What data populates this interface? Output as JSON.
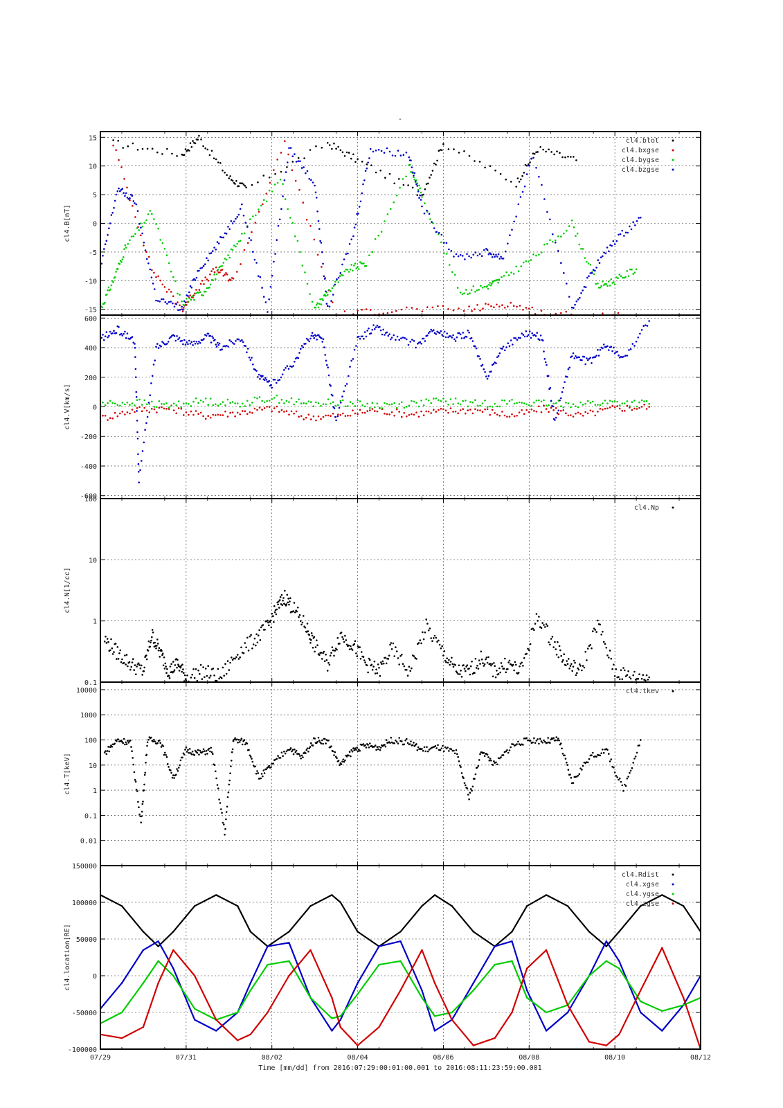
{
  "page_title": "-",
  "footer": {
    "time_label": "Time [mm/dd]  from 2016:07:29:00:01:00.001  to  2016:08:11:23:59:00.001"
  },
  "colors": {
    "black": "#000000",
    "red": "#d00000",
    "green": "#00cc00",
    "blue": "#0000c8"
  },
  "chart_data": [
    {
      "type": "scatter",
      "ylabel": "cl4.B[nT]",
      "ylim": [
        -16,
        16
      ],
      "yticks": [
        -15,
        -10,
        -5,
        0,
        5,
        10,
        15
      ],
      "ytick_labels": [
        "-15",
        "-10",
        "-5",
        "0",
        "5",
        "10",
        "15"
      ],
      "legend_position": "top-right",
      "series": [
        {
          "name": "cl4.btot",
          "color": "#000000",
          "x": [
            0.3,
            1.9,
            2.3,
            3.0,
            3.4,
            5.3,
            6.0,
            7.5,
            8.0,
            9.7,
            10.2,
            11.1
          ],
          "values": [
            14,
            12,
            15,
            8,
            6,
            14,
            11,
            5,
            14,
            7,
            13,
            11
          ]
        },
        {
          "name": "cl4.bxgse",
          "color": "#d00000",
          "x": [
            0.3,
            1.2,
            1.9,
            2.2,
            2.7,
            3.1,
            4.3,
            5.5,
            6.9,
            8.6,
            9.5,
            10.5,
            12.2
          ],
          "values": [
            14,
            -8,
            -15,
            -12,
            -8,
            -10,
            14,
            -16,
            -15,
            -15,
            -14,
            -16,
            -16
          ]
        },
        {
          "name": "cl4.bygse",
          "color": "#00cc00",
          "x": [
            0.0,
            0.3,
            0.6,
            1.2,
            1.9,
            2.4,
            2.8,
            3.3,
            4.2,
            5.0,
            5.3,
            5.8,
            6.2,
            7.2,
            7.5,
            8.4,
            9.0,
            9.3,
            10.1,
            11.0,
            11.6,
            12.0,
            12.5
          ],
          "values": [
            -15,
            -10,
            -4,
            2,
            -14,
            -12,
            -8,
            -2,
            8,
            -15,
            -12,
            -8,
            -7,
            10,
            5,
            -12,
            -11,
            -10,
            -6,
            0,
            -11,
            -10,
            -8
          ]
        },
        {
          "name": "cl4.bzgse",
          "color": "#0000c8",
          "x": [
            0.0,
            0.4,
            0.8,
            1.3,
            1.9,
            2.3,
            2.8,
            3.3,
            3.9,
            4.4,
            5.0,
            5.3,
            5.9,
            6.3,
            7.2,
            7.5,
            8.3,
            9.0,
            9.4,
            10.1,
            11.0,
            11.5,
            12.0,
            12.6
          ],
          "values": [
            -8,
            6,
            4,
            -13,
            -15,
            -8,
            -3,
            3,
            -15,
            13,
            7,
            -15,
            -2,
            13,
            12,
            3,
            -6,
            -5,
            -6,
            12,
            -15,
            -8,
            -3,
            1
          ]
        }
      ]
    },
    {
      "type": "scatter",
      "ylabel": "cl4.V[km/s]",
      "ylim": [
        -620,
        620
      ],
      "yticks": [
        -600,
        -400,
        -200,
        0,
        200,
        400,
        600
      ],
      "ytick_labels": [
        "-600",
        "-400",
        "-200",
        "0",
        "200",
        "400",
        "600"
      ],
      "series": [
        {
          "name": "",
          "color": "#d00000",
          "x": [
            0.0,
            0.8,
            1.6,
            2.4,
            3.2,
            4.0,
            4.8,
            5.6,
            6.4,
            7.2,
            8.0,
            8.8,
            9.6,
            10.4,
            11.2,
            12.0,
            12.8
          ],
          "values": [
            -80,
            -20,
            -10,
            -60,
            -40,
            -10,
            -70,
            -60,
            -20,
            -50,
            -30,
            -20,
            -60,
            -10,
            -60,
            -10,
            0
          ]
        },
        {
          "name": "",
          "color": "#00cc00",
          "x": [
            0.0,
            0.8,
            1.6,
            2.4,
            3.2,
            4.0,
            4.8,
            5.6,
            6.4,
            7.2,
            8.0,
            8.8,
            9.6,
            10.4,
            11.2,
            12.0,
            12.8
          ],
          "values": [
            20,
            30,
            10,
            40,
            20,
            60,
            20,
            30,
            10,
            20,
            40,
            20,
            30,
            20,
            20,
            30,
            20
          ]
        },
        {
          "name": "",
          "color": "#0000c8",
          "x": [
            0.0,
            0.4,
            0.8,
            0.9,
            1.3,
            1.7,
            2.1,
            2.5,
            2.8,
            3.3,
            3.7,
            4.0,
            4.5,
            4.9,
            5.2,
            5.5,
            6.0,
            6.4,
            6.8,
            7.4,
            7.8,
            8.2,
            8.6,
            9.0,
            9.4,
            9.9,
            10.3,
            10.6,
            11.0,
            11.4,
            11.8,
            12.2,
            12.8
          ],
          "values": [
            460,
            520,
            450,
            -500,
            400,
            480,
            420,
            480,
            400,
            470,
            200,
            150,
            300,
            480,
            450,
            -100,
            450,
            540,
            470,
            420,
            520,
            460,
            500,
            200,
            400,
            500,
            470,
            -100,
            350,
            300,
            420,
            320,
            580
          ]
        }
      ]
    },
    {
      "type": "scatter",
      "ylabel": "cl4.N[1/cc]",
      "ylim": [
        0.1,
        100
      ],
      "scale": "log",
      "yticks": [
        0.1,
        1,
        10,
        100
      ],
      "ytick_labels": [
        "0.1",
        "1",
        "10",
        "100"
      ],
      "legend_position": "top-right",
      "series": [
        {
          "name": "cl4.Np",
          "color": "#000000",
          "x": [
            0.1,
            0.4,
            0.7,
            1.0,
            1.2,
            1.4,
            1.6,
            1.8,
            2.0,
            2.4,
            2.8,
            3.2,
            3.6,
            3.9,
            4.1,
            4.3,
            4.5,
            4.8,
            5.0,
            5.3,
            5.6,
            5.9,
            6.2,
            6.5,
            6.8,
            7.2,
            7.6,
            8.0,
            8.3,
            8.6,
            8.9,
            9.2,
            9.5,
            9.8,
            10.2,
            10.6,
            10.9,
            11.2,
            11.6,
            12.0,
            12.4,
            12.8
          ],
          "values": [
            0.5,
            0.3,
            0.2,
            0.15,
            0.6,
            0.3,
            0.15,
            0.2,
            0.12,
            0.15,
            0.12,
            0.3,
            0.5,
            0.8,
            1.5,
            2.5,
            1.6,
            0.8,
            0.4,
            0.2,
            0.6,
            0.4,
            0.2,
            0.15,
            0.35,
            0.15,
            0.8,
            0.3,
            0.15,
            0.15,
            0.25,
            0.15,
            0.2,
            0.15,
            1.2,
            0.4,
            0.2,
            0.15,
            0.9,
            0.15,
            0.12,
            0.12
          ]
        }
      ]
    },
    {
      "type": "scatter",
      "ylabel": "cl4.T[keV]",
      "ylim": [
        0.001,
        20000
      ],
      "scale": "log",
      "yticks": [
        0.01,
        0.1,
        1,
        10,
        100,
        1000,
        10000
      ],
      "ytick_labels": [
        "0.01",
        "0.1",
        "1",
        "10",
        "100",
        "1000",
        "10000"
      ],
      "legend_position": "top-right",
      "series": [
        {
          "name": "cl4.tkev",
          "color": "#000000",
          "x": [
            0.1,
            0.4,
            0.7,
            0.95,
            1.1,
            1.4,
            1.7,
            2.0,
            2.3,
            2.6,
            2.9,
            3.1,
            3.4,
            3.7,
            4.0,
            4.4,
            4.7,
            5.0,
            5.3,
            5.6,
            5.9,
            6.2,
            6.5,
            6.8,
            7.2,
            7.5,
            7.9,
            8.3,
            8.6,
            8.9,
            9.2,
            9.6,
            10.0,
            10.4,
            10.7,
            11.0,
            11.4,
            11.8,
            12.2,
            12.6
          ],
          "values": [
            30,
            100,
            80,
            0.05,
            100,
            90,
            3,
            40,
            30,
            40,
            0.02,
            100,
            80,
            3,
            10,
            50,
            20,
            100,
            90,
            10,
            40,
            60,
            50,
            100,
            80,
            40,
            50,
            30,
            0.5,
            40,
            10,
            60,
            100,
            90,
            100,
            2,
            20,
            40,
            1,
            100
          ]
        }
      ]
    },
    {
      "type": "line",
      "ylabel": "cl4.location[RE]",
      "ylim": [
        -100000,
        150000
      ],
      "yticks": [
        -100000,
        -50000,
        0,
        50000,
        100000
      ],
      "ytick_labels": [
        "-100000",
        "-50000",
        "0",
        "50000",
        "100000"
      ],
      "top_left_label": "150000",
      "legend_position": "top-right",
      "x": [
        0.0,
        0.5,
        1.0,
        1.35,
        1.7,
        2.2,
        2.7,
        3.2,
        3.5,
        3.9,
        4.4,
        4.9,
        5.4,
        5.6,
        6.0,
        6.5,
        7.0,
        7.5,
        7.8,
        8.2,
        8.7,
        9.2,
        9.6,
        9.95,
        10.4,
        10.9,
        11.4,
        11.8,
        12.1,
        12.6,
        13.1,
        13.6,
        14.0
      ],
      "series": [
        {
          "name": "cl4.Rdist",
          "color": "#000000",
          "values": [
            110000,
            95000,
            60000,
            40000,
            60000,
            95000,
            110000,
            95000,
            60000,
            40000,
            60000,
            95000,
            110000,
            100000,
            60000,
            40000,
            60000,
            95000,
            110000,
            95000,
            60000,
            40000,
            60000,
            95000,
            110000,
            95000,
            60000,
            40000,
            60000,
            95000,
            110000,
            95000,
            60000
          ]
        },
        {
          "name": "cl4.xgse",
          "color": "#0000c8",
          "values": [
            -45000,
            -10000,
            35000,
            47000,
            10000,
            -60000,
            -75000,
            -50000,
            -10000,
            40000,
            45000,
            -30000,
            -75000,
            -60000,
            -10000,
            40000,
            47000,
            -20000,
            -75000,
            -60000,
            -10000,
            40000,
            47000,
            -20000,
            -75000,
            -50000,
            0,
            47000,
            20000,
            -50000,
            -75000,
            -40000,
            0
          ]
        },
        {
          "name": "cl4.ygse",
          "color": "#00cc00",
          "values": [
            -65000,
            -50000,
            -10000,
            20000,
            0,
            -45000,
            -60000,
            -50000,
            -20000,
            15000,
            20000,
            -30000,
            -58000,
            -55000,
            -25000,
            15000,
            20000,
            -30000,
            -55000,
            -50000,
            -20000,
            15000,
            20000,
            -30000,
            -50000,
            -40000,
            0,
            20000,
            10000,
            -35000,
            -48000,
            -40000,
            -30000
          ]
        },
        {
          "name": "cl4.zgse",
          "color": "#d00000",
          "values": [
            -80000,
            -85000,
            -70000,
            -10000,
            35000,
            0,
            -60000,
            -88000,
            -80000,
            -50000,
            0,
            35000,
            -30000,
            -70000,
            -95000,
            -70000,
            -20000,
            35000,
            -10000,
            -60000,
            -95000,
            -85000,
            -50000,
            10000,
            35000,
            -40000,
            -90000,
            -95000,
            -80000,
            -20000,
            38000,
            -30000,
            -100000
          ]
        }
      ]
    }
  ],
  "x_axis": {
    "xlim": [
      0,
      14
    ],
    "ticks": [
      0,
      2,
      4,
      6,
      8,
      10,
      12,
      14
    ],
    "tick_labels": [
      "07/29",
      "07/31",
      "08/02",
      "08/04",
      "08/06",
      "08/08",
      "08/10",
      "08/12"
    ]
  }
}
